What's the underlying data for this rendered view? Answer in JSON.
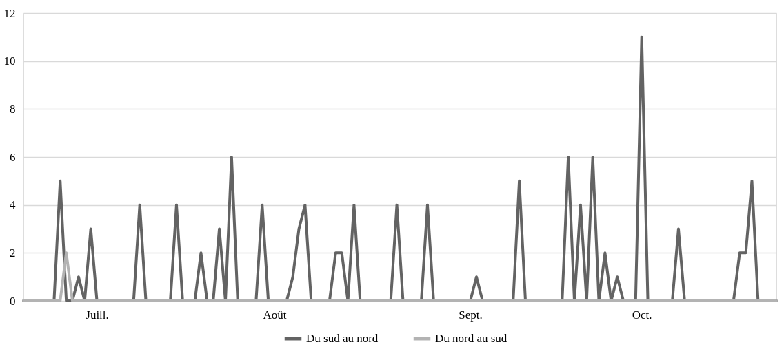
{
  "chart_data": {
    "type": "line",
    "categories": [
      null,
      null,
      null,
      null,
      null,
      null,
      null,
      null,
      null,
      null,
      null,
      null,
      "Juill.",
      null,
      null,
      null,
      null,
      null,
      null,
      null,
      null,
      null,
      null,
      null,
      null,
      null,
      null,
      null,
      null,
      null,
      null,
      null,
      null,
      null,
      null,
      null,
      null,
      null,
      null,
      null,
      null,
      "Août",
      null,
      null,
      null,
      null,
      null,
      null,
      null,
      null,
      null,
      null,
      null,
      null,
      null,
      null,
      null,
      null,
      null,
      null,
      null,
      null,
      null,
      null,
      null,
      null,
      null,
      null,
      null,
      null,
      null,
      null,
      null,
      "Sept.",
      null,
      null,
      null,
      null,
      null,
      null,
      null,
      null,
      null,
      null,
      null,
      null,
      null,
      null,
      null,
      null,
      null,
      null,
      null,
      null,
      null,
      null,
      null,
      null,
      null,
      null,
      null,
      "Oct.",
      null,
      null,
      null,
      null,
      null,
      null,
      null,
      null,
      null,
      null,
      null,
      null,
      null,
      null,
      null,
      null,
      null,
      null,
      null,
      null,
      null,
      null
    ],
    "series": [
      {
        "name": "Du sud au nord",
        "color": "#636363",
        "values": [
          0,
          0,
          0,
          0,
          0,
          0,
          5,
          0,
          0,
          1,
          0,
          3,
          0,
          0,
          0,
          0,
          0,
          0,
          0,
          4,
          0,
          0,
          0,
          0,
          0,
          4,
          0,
          0,
          0,
          2,
          0,
          0,
          3,
          0,
          6,
          0,
          0,
          0,
          0,
          4,
          0,
          0,
          0,
          0,
          1,
          3,
          4,
          0,
          0,
          0,
          0,
          2,
          2,
          0,
          4,
          0,
          0,
          0,
          0,
          0,
          0,
          4,
          0,
          0,
          0,
          0,
          4,
          0,
          0,
          0,
          0,
          0,
          0,
          0,
          1,
          0,
          0,
          0,
          0,
          0,
          0,
          5,
          0,
          0,
          0,
          0,
          0,
          0,
          0,
          6,
          0,
          4,
          0,
          6,
          0,
          2,
          0,
          1,
          0,
          0,
          0,
          11,
          0,
          0,
          0,
          0,
          0,
          3,
          0,
          0,
          0,
          0,
          0,
          0,
          0,
          0,
          0,
          2,
          2,
          5,
          0,
          0,
          0,
          0
        ]
      },
      {
        "name": "Du nord au sud",
        "color": "#b3b3b3",
        "values": [
          0,
          0,
          0,
          0,
          0,
          0,
          0,
          2,
          0,
          0,
          0,
          0,
          0,
          0,
          0,
          0,
          0,
          0,
          0,
          0,
          0,
          0,
          0,
          0,
          0,
          0,
          0,
          0,
          0,
          0,
          0,
          0,
          0,
          0,
          0,
          0,
          0,
          0,
          0,
          0,
          0,
          0,
          0,
          0,
          0,
          0,
          0,
          0,
          0,
          0,
          0,
          0,
          0,
          0,
          0,
          0,
          0,
          0,
          0,
          0,
          0,
          0,
          0,
          0,
          0,
          0,
          0,
          0,
          0,
          0,
          0,
          0,
          0,
          0,
          0,
          0,
          0,
          0,
          0,
          0,
          0,
          0,
          0,
          0,
          0,
          0,
          0,
          0,
          0,
          0,
          0,
          0,
          0,
          0,
          0,
          0,
          0,
          0,
          0,
          0,
          0,
          0,
          0,
          0,
          0,
          0,
          0,
          0,
          0,
          0,
          0,
          0,
          0,
          0,
          0,
          0,
          0,
          0,
          0,
          0,
          0,
          0,
          0,
          0
        ]
      }
    ],
    "ylim": [
      0,
      12
    ],
    "yticks": [
      0,
      2,
      4,
      6,
      8,
      10,
      12
    ],
    "grid": "y",
    "legend": "bottom",
    "marker": "none",
    "line_style": "solid"
  }
}
